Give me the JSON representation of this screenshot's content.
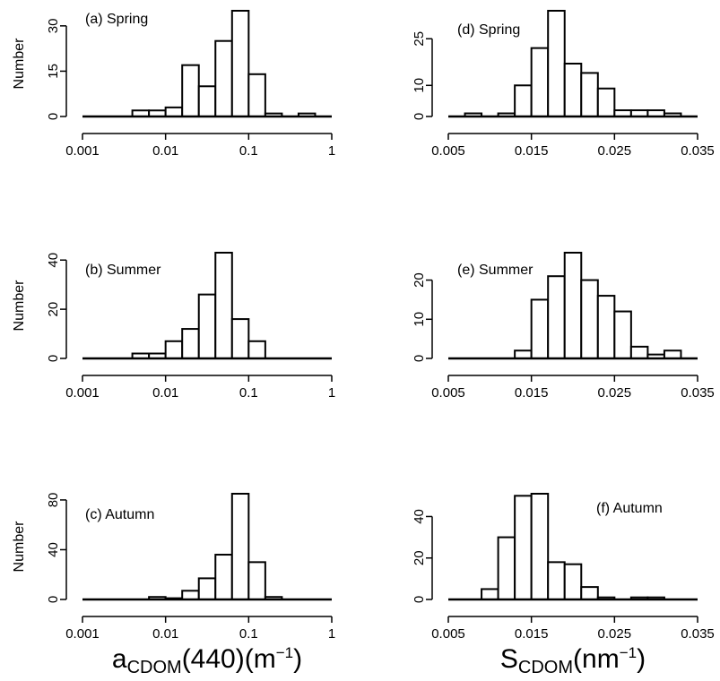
{
  "colors": {
    "axis": "#000000",
    "bar_fill": "#ffffff",
    "bar_stroke": "#000000"
  },
  "x_titles": {
    "left": {
      "main": "a",
      "sub": "CDOM",
      "after": "(440)(m",
      "sup": "−1",
      "close": ")"
    },
    "right": {
      "main": "S",
      "sub": "CDOM",
      "after": "(nm",
      "sup": "−1",
      "close": ")"
    }
  },
  "chart_data": [
    {
      "type": "bar",
      "panel": "a",
      "title": "(a) Spring",
      "ylabel": "Number",
      "x_scale": "log",
      "xlim": [
        0.001,
        1
      ],
      "x_ticks": [
        "0.001",
        "0.01",
        "0.1",
        "1"
      ],
      "ylim": [
        0,
        35
      ],
      "y_ticks": [
        "0",
        "15",
        "30"
      ],
      "bin_edges": [
        0.001,
        0.001585,
        0.002512,
        0.003981,
        0.00631,
        0.01,
        0.01585,
        0.02512,
        0.03981,
        0.0631,
        0.1,
        0.1585,
        0.2512,
        0.3981,
        0.631,
        1
      ],
      "counts": [
        0,
        0,
        0,
        2,
        2,
        3,
        17,
        10,
        25,
        35,
        14,
        1,
        0,
        1,
        0
      ]
    },
    {
      "type": "bar",
      "panel": "b",
      "title": "(b) Summer",
      "ylabel": "Number",
      "x_scale": "log",
      "xlim": [
        0.001,
        1
      ],
      "x_ticks": [
        "0.001",
        "0.01",
        "0.1",
        "1"
      ],
      "ylim": [
        0,
        43
      ],
      "y_ticks": [
        "0",
        "20",
        "40"
      ],
      "bin_edges": [
        0.001,
        0.001585,
        0.002512,
        0.003981,
        0.00631,
        0.01,
        0.01585,
        0.02512,
        0.03981,
        0.0631,
        0.1,
        0.1585,
        0.2512,
        0.3981,
        0.631,
        1
      ],
      "counts": [
        0,
        0,
        0,
        2,
        2,
        7,
        12,
        26,
        43,
        16,
        7,
        0,
        0,
        0,
        0
      ]
    },
    {
      "type": "bar",
      "panel": "c",
      "title": "(c) Autumn",
      "ylabel": "Number",
      "x_scale": "log",
      "xlim": [
        0.001,
        1
      ],
      "x_ticks": [
        "0.001",
        "0.01",
        "0.1",
        "1"
      ],
      "ylim": [
        0,
        85
      ],
      "y_ticks": [
        "0",
        "40",
        "80"
      ],
      "bin_edges": [
        0.001,
        0.001585,
        0.002512,
        0.003981,
        0.00631,
        0.01,
        0.01585,
        0.02512,
        0.03981,
        0.0631,
        0.1,
        0.1585,
        0.2512,
        0.3981,
        0.631,
        1
      ],
      "counts": [
        0,
        0,
        0,
        0,
        2,
        1,
        7,
        17,
        36,
        85,
        30,
        2,
        0,
        0,
        0
      ]
    },
    {
      "type": "bar",
      "panel": "d",
      "title": "(d) Spring",
      "ylabel": "",
      "x_scale": "linear",
      "xlim": [
        0.005,
        0.035
      ],
      "x_ticks": [
        "0.005",
        "0.015",
        "0.025",
        "0.035"
      ],
      "ylim": [
        0,
        34
      ],
      "y_ticks": [
        "0",
        "10",
        "25"
      ],
      "bin_edges": [
        0.005,
        0.007,
        0.009,
        0.011,
        0.013,
        0.015,
        0.017,
        0.019,
        0.021,
        0.023,
        0.025,
        0.027,
        0.029,
        0.031,
        0.033,
        0.035
      ],
      "counts": [
        0,
        1,
        0,
        1,
        10,
        22,
        34,
        17,
        14,
        9,
        2,
        2,
        2,
        1,
        0
      ]
    },
    {
      "type": "bar",
      "panel": "e",
      "title": "(e) Summer",
      "ylabel": "",
      "x_scale": "linear",
      "xlim": [
        0.005,
        0.035
      ],
      "x_ticks": [
        "0.005",
        "0.015",
        "0.025",
        "0.035"
      ],
      "ylim": [
        0,
        27
      ],
      "y_ticks": [
        "0",
        "10",
        "20"
      ],
      "bin_edges": [
        0.005,
        0.007,
        0.009,
        0.011,
        0.013,
        0.015,
        0.017,
        0.019,
        0.021,
        0.023,
        0.025,
        0.027,
        0.029,
        0.031,
        0.033,
        0.035
      ],
      "counts": [
        0,
        0,
        0,
        0,
        2,
        15,
        21,
        27,
        20,
        16,
        12,
        3,
        1,
        2,
        0
      ]
    },
    {
      "type": "bar",
      "panel": "f",
      "title": "(f) Autumn",
      "ylabel": "",
      "x_scale": "linear",
      "xlim": [
        0.005,
        0.035
      ],
      "x_ticks": [
        "0.005",
        "0.015",
        "0.025",
        "0.035"
      ],
      "ylim": [
        0,
        52
      ],
      "y_ticks": [
        "0",
        "20",
        "40"
      ],
      "bin_edges": [
        0.005,
        0.007,
        0.009,
        0.011,
        0.013,
        0.015,
        0.017,
        0.019,
        0.021,
        0.023,
        0.025,
        0.027,
        0.029,
        0.031,
        0.033,
        0.035
      ],
      "counts": [
        0,
        0,
        5,
        30,
        50,
        51,
        18,
        17,
        6,
        1,
        0,
        1,
        1,
        0,
        0
      ]
    }
  ]
}
